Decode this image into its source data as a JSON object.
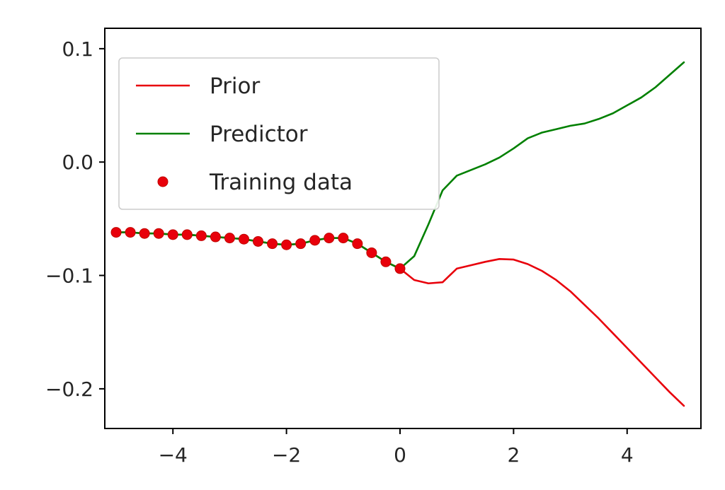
{
  "chart_data": {
    "type": "line",
    "title": "",
    "xlabel": "",
    "ylabel": "",
    "xlim": [
      -5.2,
      5.3
    ],
    "ylim": [
      -0.235,
      0.118
    ],
    "grid": false,
    "x_ticks": [
      -4,
      -2,
      0,
      2,
      4
    ],
    "y_ticks": [
      0.1,
      0.0,
      -0.1,
      -0.2
    ],
    "x_tick_labels": [
      "−4",
      "−2",
      "0",
      "2",
      "4"
    ],
    "y_tick_labels": [
      "0.1",
      "0.0",
      "−0.1",
      "−0.2"
    ],
    "legend": {
      "position": "upper-left",
      "entries": [
        "Prior",
        "Predictor",
        "Training data"
      ]
    },
    "series": [
      {
        "name": "Prior",
        "kind": "line",
        "color": "#e8000b",
        "x": [
          -5,
          -4.75,
          -4.5,
          -4.25,
          -4,
          -3.75,
          -3.5,
          -3.25,
          -3,
          -2.75,
          -2.5,
          -2.25,
          -2,
          -1.75,
          -1.5,
          -1.25,
          -1,
          -0.75,
          -0.5,
          -0.25,
          0,
          0.25,
          0.5,
          0.75,
          1,
          1.25,
          1.5,
          1.75,
          2,
          2.25,
          2.5,
          2.75,
          3,
          3.25,
          3.5,
          3.75,
          4,
          4.25,
          4.5,
          4.75,
          5
        ],
        "y": [
          -0.062,
          -0.062,
          -0.063,
          -0.063,
          -0.064,
          -0.064,
          -0.065,
          -0.066,
          -0.067,
          -0.068,
          -0.07,
          -0.072,
          -0.073,
          -0.072,
          -0.069,
          -0.067,
          -0.067,
          -0.072,
          -0.08,
          -0.088,
          -0.094,
          -0.104,
          -0.107,
          -0.106,
          -0.094,
          -0.091,
          -0.088,
          -0.0855,
          -0.086,
          -0.09,
          -0.096,
          -0.104,
          -0.114,
          -0.126,
          -0.138,
          -0.151,
          -0.164,
          -0.177,
          -0.19,
          -0.203,
          -0.215
        ]
      },
      {
        "name": "Predictor",
        "kind": "line",
        "color": "#008000",
        "x": [
          -5,
          -4.75,
          -4.5,
          -4.25,
          -4,
          -3.75,
          -3.5,
          -3.25,
          -3,
          -2.75,
          -2.5,
          -2.25,
          -2,
          -1.75,
          -1.5,
          -1.25,
          -1,
          -0.75,
          -0.5,
          -0.25,
          0,
          0.25,
          0.5,
          0.75,
          1,
          1.25,
          1.5,
          1.75,
          2,
          2.25,
          2.5,
          2.75,
          3,
          3.25,
          3.5,
          3.75,
          4,
          4.25,
          4.5,
          4.75,
          5
        ],
        "y": [
          -0.062,
          -0.062,
          -0.063,
          -0.063,
          -0.064,
          -0.064,
          -0.065,
          -0.066,
          -0.067,
          -0.068,
          -0.07,
          -0.072,
          -0.073,
          -0.072,
          -0.069,
          -0.067,
          -0.067,
          -0.072,
          -0.08,
          -0.088,
          -0.094,
          -0.083,
          -0.055,
          -0.025,
          -0.012,
          -0.007,
          -0.002,
          0.004,
          0.012,
          0.021,
          0.026,
          0.029,
          0.032,
          0.034,
          0.038,
          0.043,
          0.05,
          0.057,
          0.066,
          0.077,
          0.088
        ]
      },
      {
        "name": "Training data",
        "kind": "scatter",
        "color": "#e8000b",
        "x": [
          -5,
          -4.75,
          -4.5,
          -4.25,
          -4,
          -3.75,
          -3.5,
          -3.25,
          -3,
          -2.75,
          -2.5,
          -2.25,
          -2,
          -1.75,
          -1.5,
          -1.25,
          -1,
          -0.75,
          -0.5,
          -0.25,
          0
        ],
        "y": [
          -0.062,
          -0.062,
          -0.063,
          -0.063,
          -0.064,
          -0.064,
          -0.065,
          -0.066,
          -0.067,
          -0.068,
          -0.07,
          -0.072,
          -0.073,
          -0.072,
          -0.069,
          -0.067,
          -0.067,
          -0.072,
          -0.08,
          -0.088,
          -0.094
        ]
      }
    ],
    "colors": {
      "spine": "#000000",
      "tick_label": "#262626",
      "legend_edge": "#cccccc",
      "legend_bg": "#ffffff",
      "background": "#ffffff"
    }
  }
}
